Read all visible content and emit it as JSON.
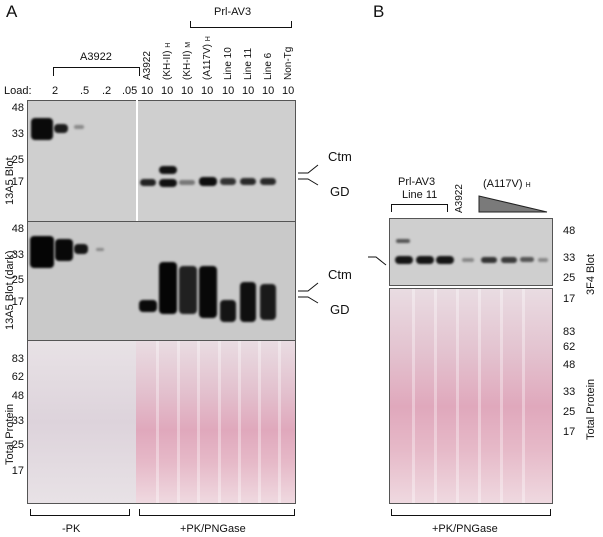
{
  "panels": {
    "a": "A",
    "b": "B"
  },
  "panelA": {
    "group_a3922": "A3922",
    "group_prl": "Prl-AV3",
    "load_label": "Load:",
    "loads": [
      "2",
      ".5",
      ".2",
      ".05",
      "10",
      "10",
      "10",
      "10",
      "10",
      "10",
      "10",
      "10"
    ],
    "lanes": [
      {
        "name": "A3922",
        "sub": ""
      },
      {
        "name": "(KH-II)",
        "sub": "H"
      },
      {
        "name": "(KH-II)",
        "sub": "M"
      },
      {
        "name": "(A117V)",
        "sub": "H"
      },
      {
        "name": "Line 10",
        "sub": ""
      },
      {
        "name": "Line 11",
        "sub": ""
      },
      {
        "name": "Line 6",
        "sub": ""
      },
      {
        "name": "Non-Tg",
        "sub": ""
      }
    ],
    "blot1_label": "13A5 Blot",
    "blot2_label": "13A5 Blot (dark)",
    "blot3_label": "Total Protein",
    "mw_blot1": [
      "48",
      "33",
      "25",
      "17"
    ],
    "mw_blot2": [
      "48",
      "33",
      "25",
      "17"
    ],
    "mw_blot3": [
      "83",
      "62",
      "48",
      "33",
      "25",
      "17"
    ],
    "ctm": "Ctm",
    "gd": "GD",
    "bottom_left": "-PK",
    "bottom_right": "+PK/PNGase"
  },
  "panelB": {
    "group_prl_line1": "Prl-AV3",
    "group_prl_line2": "Line 11",
    "a3922": "A3922",
    "a117v": "(A117V)",
    "a117v_sub": "H",
    "mw_blot1": [
      "48",
      "33",
      "25",
      "17"
    ],
    "mw_blot2": [
      "83",
      "62",
      "48",
      "33",
      "25",
      "17"
    ],
    "blot1_label": "3F4 Blot",
    "blot2_label": "Total Protein",
    "bottom": "+PK/PNGase"
  }
}
